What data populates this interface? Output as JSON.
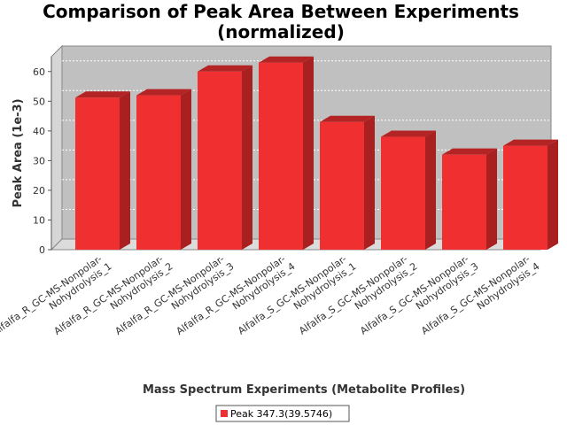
{
  "chart_data": {
    "type": "bar",
    "title_lines": [
      "Comparison of Peak Area Between Experiments",
      "(normalized)"
    ],
    "xlabel": "Mass Spectrum Experiments (Metabolite Profiles)",
    "ylabel": "Peak Area (1e-3)",
    "ylim": [
      0,
      65
    ],
    "yticks": [
      0,
      10,
      20,
      30,
      40,
      50,
      60
    ],
    "grid": true,
    "legend_position": "bottom",
    "categories": [
      [
        "Alfalfa_R_GC-MS-Nonpolar-",
        "Nohydrolysis_1"
      ],
      [
        "Alfalfa_R_GC-MS-Nonpolar-",
        "Nohydrolysis_2"
      ],
      [
        "Alfalfa_R_GC-MS-Nonpolar-",
        "Nohydrolysis_3"
      ],
      [
        "Alfalfa_R_GC-MS-Nonpolar-",
        "Nohydrolysis_4"
      ],
      [
        "Alfalfa_S_GC-MS-Nonpolar-",
        "Nohydrolysis_1"
      ],
      [
        "Alfalfa_S_GC-MS-Nonpolar-",
        "Nohydrolysis_2"
      ],
      [
        "Alfalfa_S_GC-MS-Nonpolar-",
        "Nohydrolysis_3"
      ],
      [
        "Alfalfa_S_GC-MS-Nonpolar-",
        "Nohydrolysis_4"
      ]
    ],
    "series": [
      {
        "name": "Peak 347.3(39.5746)",
        "color": "#f03030",
        "values": [
          51.2,
          52.0,
          60.0,
          63.0,
          43.0,
          38.0,
          32.0,
          35.0
        ]
      }
    ]
  }
}
